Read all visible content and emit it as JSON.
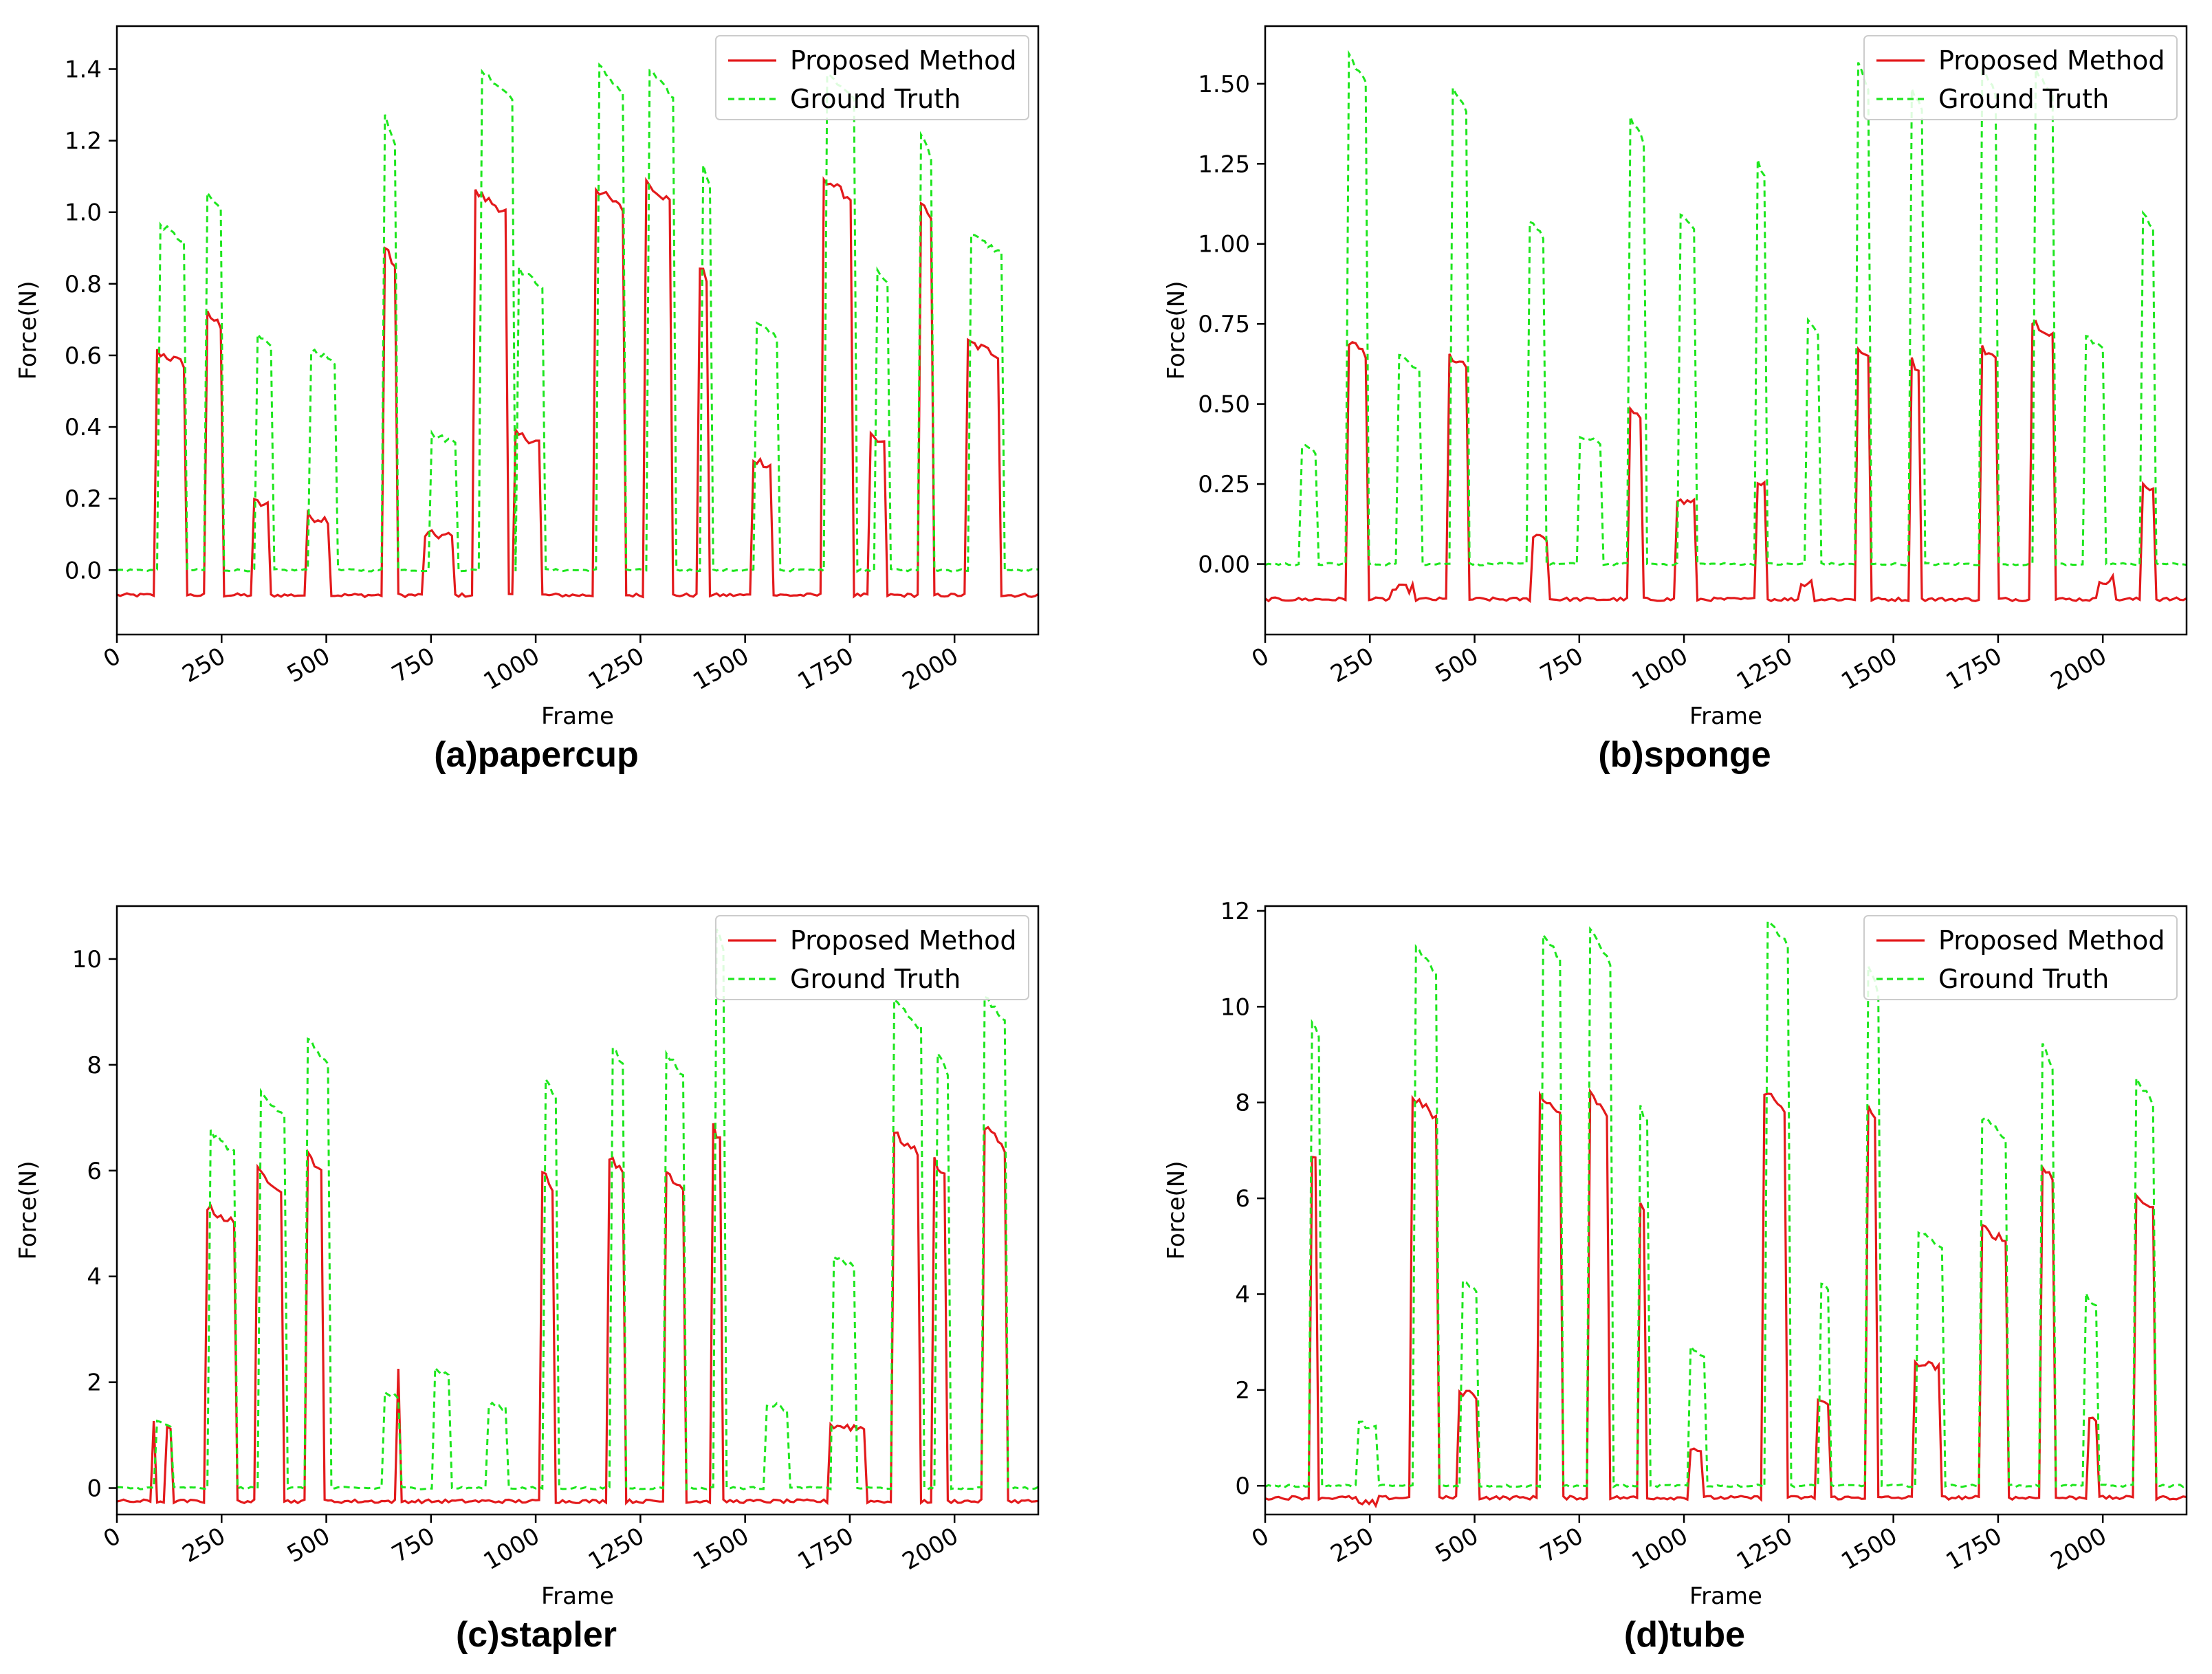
{
  "colors": {
    "proposed": "#e31a1c",
    "truth": "#1ee61e",
    "axis": "#000000",
    "legend_border": "#cccccc"
  },
  "chart_data": [
    {
      "type": "line",
      "caption": "(a)papercup",
      "xlabel": "Frame",
      "ylabel": "Force(N)",
      "xlim": [
        0,
        2200
      ],
      "ylim": [
        -0.18,
        1.52
      ],
      "xticks": [
        0,
        250,
        500,
        750,
        1000,
        1250,
        1500,
        1750,
        2000
      ],
      "xtick_labels": [
        "0",
        "250",
        "500",
        "750",
        "1000",
        "1250",
        "1500",
        "1750",
        "2000"
      ],
      "yticks": [
        0,
        0.2,
        0.4,
        0.6,
        0.8,
        1.0,
        1.2,
        1.4
      ],
      "ytick_labels": [
        "0.0",
        "0.2",
        "0.4",
        "0.6",
        "0.8",
        "1.0",
        "1.2",
        "1.4"
      ],
      "legend": {
        "position": "upper-right",
        "entries": [
          "Proposed Method",
          "Ground Truth"
        ]
      },
      "series": [
        {
          "name": "Proposed Method",
          "style": "solid",
          "baseline": -0.07,
          "pulses": [
            [
              95,
              165,
              0.61
            ],
            [
              210,
              255,
              0.72
            ],
            [
              325,
              365,
              0.19
            ],
            [
              450,
              510,
              0.15
            ],
            [
              640,
              665,
              0.9
            ],
            [
              735,
              800,
              0.1
            ],
            [
              850,
              935,
              1.06
            ],
            [
              950,
              1010,
              0.38
            ],
            [
              1140,
              1210,
              1.07
            ],
            [
              1260,
              1325,
              1.09
            ],
            [
              1390,
              1415,
              0.85
            ],
            [
              1520,
              1565,
              0.31
            ],
            [
              1685,
              1755,
              1.1
            ],
            [
              1800,
              1835,
              0.37
            ],
            [
              1920,
              1945,
              1.03
            ],
            [
              2025,
              2105,
              0.64
            ]
          ]
        },
        {
          "name": "Ground Truth",
          "style": "dashed",
          "baseline": 0.0,
          "pulses": [
            [
              100,
              165,
              0.97
            ],
            [
              210,
              255,
              1.06
            ],
            [
              330,
              370,
              0.66
            ],
            [
              460,
              520,
              0.62
            ],
            [
              640,
              665,
              1.27
            ],
            [
              745,
              810,
              0.38
            ],
            [
              865,
              950,
              1.4
            ],
            [
              960,
              1020,
              0.84
            ],
            [
              1150,
              1215,
              1.41
            ],
            [
              1270,
              1330,
              1.4
            ],
            [
              1395,
              1420,
              1.14
            ],
            [
              1525,
              1580,
              0.69
            ],
            [
              1690,
              1760,
              1.4
            ],
            [
              1810,
              1845,
              0.85
            ],
            [
              1920,
              1945,
              1.22
            ],
            [
              2035,
              2115,
              0.94
            ]
          ]
        }
      ]
    },
    {
      "type": "line",
      "caption": "(b)sponge",
      "xlabel": "Frame",
      "ylabel": "Force(N)",
      "xlim": [
        0,
        2200
      ],
      "ylim": [
        -0.22,
        1.68
      ],
      "xticks": [
        0,
        250,
        500,
        750,
        1000,
        1250,
        1500,
        1750,
        2000
      ],
      "xtick_labels": [
        "0",
        "250",
        "500",
        "750",
        "1000",
        "1250",
        "1500",
        "1750",
        "2000"
      ],
      "yticks": [
        0,
        0.25,
        0.5,
        0.75,
        1.0,
        1.25,
        1.5
      ],
      "ytick_labels": [
        "0.00",
        "0.25",
        "0.50",
        "0.75",
        "1.00",
        "1.25",
        "1.50"
      ],
      "legend": {
        "position": "upper-right",
        "entries": [
          "Proposed Method",
          "Ground Truth"
        ]
      },
      "series": [
        {
          "name": "Proposed Method",
          "style": "solid",
          "baseline": -0.11,
          "pulses": [
            [
              195,
              240,
              0.7
            ],
            [
              300,
              355,
              -0.08
            ],
            [
              440,
              480,
              0.65
            ],
            [
              640,
              675,
              0.09
            ],
            [
              870,
              900,
              0.48
            ],
            [
              980,
              1025,
              0.2
            ],
            [
              1170,
              1195,
              0.27
            ],
            [
              1280,
              1310,
              -0.06
            ],
            [
              1415,
              1440,
              0.68
            ],
            [
              1540,
              1565,
              0.64
            ],
            [
              1705,
              1745,
              0.68
            ],
            [
              1830,
              1885,
              0.76
            ],
            [
              1990,
              2030,
              -0.05
            ],
            [
              2095,
              2125,
              0.25
            ]
          ]
        },
        {
          "name": "Ground Truth",
          "style": "dashed",
          "baseline": 0.0,
          "pulses": [
            [
              85,
              120,
              0.37
            ],
            [
              195,
              240,
              1.6
            ],
            [
              320,
              370,
              0.65
            ],
            [
              445,
              485,
              1.5
            ],
            [
              630,
              670,
              1.08
            ],
            [
              745,
              800,
              0.4
            ],
            [
              870,
              905,
              1.4
            ],
            [
              990,
              1030,
              1.1
            ],
            [
              1170,
              1195,
              1.28
            ],
            [
              1290,
              1320,
              0.77
            ],
            [
              1415,
              1440,
              1.57
            ],
            [
              1540,
              1570,
              1.5
            ],
            [
              1710,
              1750,
              1.55
            ],
            [
              1835,
              1885,
              1.55
            ],
            [
              1960,
              2000,
              0.71
            ],
            [
              2095,
              2125,
              1.1
            ]
          ]
        }
      ]
    },
    {
      "type": "line",
      "caption": "(c)stapler",
      "xlabel": "Frame",
      "ylabel": "Force(N)",
      "xlim": [
        0,
        2200
      ],
      "ylim": [
        -0.5,
        11.0
      ],
      "xticks": [
        0,
        250,
        500,
        750,
        1000,
        1250,
        1500,
        1750,
        2000
      ],
      "xtick_labels": [
        "0",
        "250",
        "500",
        "750",
        "1000",
        "1250",
        "1500",
        "1750",
        "2000"
      ],
      "yticks": [
        0,
        2,
        4,
        6,
        8,
        10
      ],
      "ytick_labels": [
        "0",
        "2",
        "4",
        "6",
        "8",
        "10"
      ],
      "legend": {
        "position": "upper-right",
        "entries": [
          "Proposed Method",
          "Ground Truth"
        ]
      },
      "series": [
        {
          "name": "Proposed Method",
          "style": "solid",
          "baseline": -0.25,
          "pulses": [
            [
              85,
              95,
              1.3
            ],
            [
              120,
              130,
              1.1
            ],
            [
              215,
              285,
              5.3
            ],
            [
              335,
              395,
              6.0
            ],
            [
              450,
              495,
              6.35
            ],
            [
              665,
              675,
              2.3
            ],
            [
              1015,
              1045,
              6.0
            ],
            [
              1175,
              1215,
              6.3
            ],
            [
              1310,
              1355,
              6.0
            ],
            [
              1420,
              1445,
              6.9
            ],
            [
              1700,
              1785,
              1.2
            ],
            [
              1855,
              1915,
              6.7
            ],
            [
              1950,
              1980,
              6.2
            ],
            [
              2070,
              2120,
              6.85
            ]
          ]
        },
        {
          "name": "Ground Truth",
          "style": "dashed",
          "baseline": 0.0,
          "pulses": [
            [
              95,
              130,
              1.25
            ],
            [
              220,
              280,
              6.75
            ],
            [
              340,
              400,
              7.5
            ],
            [
              455,
              505,
              8.5
            ],
            [
              640,
              675,
              1.8
            ],
            [
              760,
              795,
              2.25
            ],
            [
              885,
              935,
              1.6
            ],
            [
              1020,
              1050,
              7.8
            ],
            [
              1180,
              1215,
              8.4
            ],
            [
              1310,
              1355,
              8.25
            ],
            [
              1425,
              1450,
              10.8
            ],
            [
              1550,
              1600,
              1.6
            ],
            [
              1710,
              1765,
              4.4
            ],
            [
              1855,
              1925,
              9.2
            ],
            [
              1960,
              1990,
              8.2
            ],
            [
              2070,
              2120,
              9.35
            ]
          ]
        }
      ]
    },
    {
      "type": "line",
      "caption": "(d)tube",
      "xlabel": "Frame",
      "ylabel": "Force(N)",
      "xlim": [
        0,
        2200
      ],
      "ylim": [
        -0.6,
        12.1
      ],
      "xticks": [
        0,
        250,
        500,
        750,
        1000,
        1250,
        1500,
        1750,
        2000
      ],
      "xtick_labels": [
        "0",
        "250",
        "500",
        "750",
        "1000",
        "1250",
        "1500",
        "1750",
        "2000"
      ],
      "yticks": [
        0,
        2,
        4,
        6,
        8,
        10,
        12
      ],
      "ytick_labels": [
        "0",
        "2",
        "4",
        "6",
        "8",
        "10",
        "12"
      ],
      "legend": {
        "position": "upper-right",
        "entries": [
          "Proposed Method",
          "Ground Truth"
        ]
      },
      "series": [
        {
          "name": "Proposed Method",
          "style": "solid",
          "baseline": -0.25,
          "pulses": [
            [
              105,
              125,
              7.1
            ],
            [
              220,
              265,
              -0.4
            ],
            [
              350,
              410,
              8.15
            ],
            [
              460,
              505,
              2.0
            ],
            [
              655,
              705,
              8.2
            ],
            [
              770,
              820,
              8.25
            ],
            [
              890,
              910,
              6.0
            ],
            [
              1010,
              1045,
              0.8
            ],
            [
              1185,
              1245,
              8.3
            ],
            [
              1320,
              1345,
              1.8
            ],
            [
              1440,
              1460,
              8.0
            ],
            [
              1550,
              1610,
              2.6
            ],
            [
              1710,
              1775,
              5.4
            ],
            [
              1850,
              1880,
              6.8
            ],
            [
              1965,
              1985,
              1.5
            ],
            [
              2080,
              2120,
              6.1
            ]
          ]
        },
        {
          "name": "Ground Truth",
          "style": "dashed",
          "baseline": 0.0,
          "pulses": [
            [
              105,
              130,
              9.9
            ],
            [
              220,
              265,
              1.3
            ],
            [
              355,
              415,
              11.3
            ],
            [
              465,
              510,
              4.3
            ],
            [
              660,
              710,
              11.6
            ],
            [
              775,
              825,
              11.6
            ],
            [
              890,
              915,
              8.0
            ],
            [
              1015,
              1050,
              2.85
            ],
            [
              1195,
              1255,
              11.9
            ],
            [
              1325,
              1350,
              4.3
            ],
            [
              1440,
              1465,
              10.9
            ],
            [
              1555,
              1620,
              5.3
            ],
            [
              1710,
              1775,
              7.7
            ],
            [
              1850,
              1880,
              9.3
            ],
            [
              1955,
              1985,
              4.0
            ],
            [
              2080,
              2120,
              8.5
            ]
          ]
        }
      ]
    }
  ]
}
